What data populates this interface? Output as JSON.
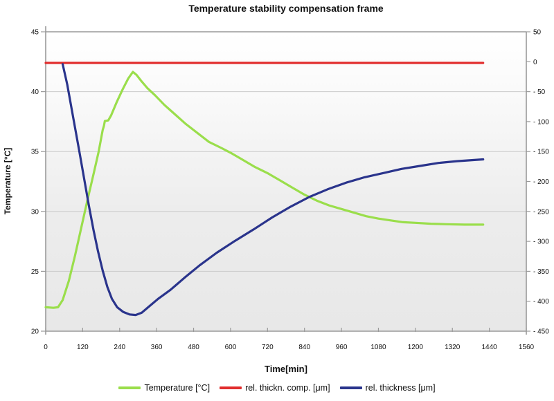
{
  "title": "Temperature stability compensation frame",
  "chart_data": {
    "type": "line",
    "title": "Temperature stability compensation frame",
    "xlabel": "Time[min]",
    "ylabel_left": "Temperature [°C]",
    "xlim": [
      0,
      1560
    ],
    "x_ticks": [
      0,
      120,
      240,
      360,
      480,
      600,
      720,
      840,
      960,
      1080,
      1200,
      1320,
      1440,
      1560
    ],
    "ylim_left": [
      20,
      45
    ],
    "yticks_left": [
      45,
      40,
      35,
      30,
      25,
      20
    ],
    "ylim_right": [
      -450,
      50
    ],
    "yticks_right_values": [
      50,
      0,
      -50,
      -100,
      -150,
      -200,
      -250,
      -300,
      -350,
      -400,
      -450
    ],
    "yticks_right_labels": [
      "50",
      "0",
      "- 50",
      "- 100",
      "- 150",
      "- 200",
      "- 250",
      "- 300",
      "- 350",
      "- 400",
      "- 450"
    ],
    "grid_values_left": [
      40,
      35,
      30,
      25
    ],
    "grid_on": true,
    "legend_position": "bottom",
    "plot_background_gradient": [
      "#ffffff",
      "#fafafa",
      "#ececec",
      "#e8e8e8"
    ],
    "frame_color": "#999999",
    "grid_color": "#c9c9c9",
    "series": [
      {
        "id": "temperature",
        "name": "Temperature [°C]",
        "axis": "left",
        "color": "#9ade4b",
        "points": [
          [
            0,
            22.0
          ],
          [
            25,
            21.95
          ],
          [
            40,
            22.0
          ],
          [
            55,
            22.6
          ],
          [
            75,
            24.2
          ],
          [
            95,
            26.3
          ],
          [
            115,
            28.6
          ],
          [
            135,
            30.9
          ],
          [
            155,
            33.1
          ],
          [
            172,
            35.0
          ],
          [
            185,
            36.8
          ],
          [
            189,
            37.15
          ],
          [
            192,
            37.55
          ],
          [
            203,
            37.6
          ],
          [
            212,
            38.0
          ],
          [
            230,
            39.1
          ],
          [
            250,
            40.2
          ],
          [
            268,
            41.1
          ],
          [
            283,
            41.65
          ],
          [
            295,
            41.4
          ],
          [
            310,
            40.9
          ],
          [
            330,
            40.3
          ],
          [
            355,
            39.7
          ],
          [
            385,
            38.9
          ],
          [
            420,
            38.1
          ],
          [
            455,
            37.3
          ],
          [
            490,
            36.6
          ],
          [
            530,
            35.8
          ],
          [
            570,
            35.3
          ],
          [
            600,
            34.9
          ],
          [
            640,
            34.3
          ],
          [
            680,
            33.7
          ],
          [
            720,
            33.2
          ],
          [
            760,
            32.6
          ],
          [
            800,
            32.0
          ],
          [
            840,
            31.4
          ],
          [
            880,
            30.9
          ],
          [
            920,
            30.5
          ],
          [
            960,
            30.2
          ],
          [
            1000,
            29.9
          ],
          [
            1040,
            29.6
          ],
          [
            1080,
            29.4
          ],
          [
            1120,
            29.25
          ],
          [
            1160,
            29.1
          ],
          [
            1200,
            29.05
          ],
          [
            1250,
            28.97
          ],
          [
            1300,
            28.93
          ],
          [
            1360,
            28.9
          ],
          [
            1420,
            28.9
          ]
        ]
      },
      {
        "id": "rel-thickn-comp",
        "name": "rel. thickn. comp. [μm]",
        "axis": "right",
        "color": "#e12d2d",
        "points": [
          [
            0,
            -2
          ],
          [
            1420,
            -2
          ]
        ]
      },
      {
        "id": "rel-thickness",
        "name": "rel. thickness [μm]",
        "axis": "right",
        "color": "#2a348c",
        "points": [
          [
            55,
            -4
          ],
          [
            70,
            -38
          ],
          [
            90,
            -95
          ],
          [
            110,
            -152
          ],
          [
            125,
            -196
          ],
          [
            140,
            -240
          ],
          [
            155,
            -281
          ],
          [
            170,
            -317
          ],
          [
            185,
            -349
          ],
          [
            200,
            -376
          ],
          [
            215,
            -396
          ],
          [
            232,
            -410
          ],
          [
            252,
            -418
          ],
          [
            272,
            -422
          ],
          [
            292,
            -423
          ],
          [
            312,
            -419
          ],
          [
            335,
            -409
          ],
          [
            365,
            -396
          ],
          [
            405,
            -381
          ],
          [
            450,
            -361
          ],
          [
            500,
            -340
          ],
          [
            555,
            -319
          ],
          [
            615,
            -299
          ],
          [
            675,
            -280
          ],
          [
            735,
            -260
          ],
          [
            795,
            -242
          ],
          [
            855,
            -226
          ],
          [
            915,
            -213
          ],
          [
            975,
            -202
          ],
          [
            1035,
            -193
          ],
          [
            1095,
            -186
          ],
          [
            1155,
            -179
          ],
          [
            1215,
            -174
          ],
          [
            1275,
            -169
          ],
          [
            1335,
            -166
          ],
          [
            1420,
            -163
          ]
        ]
      }
    ]
  }
}
